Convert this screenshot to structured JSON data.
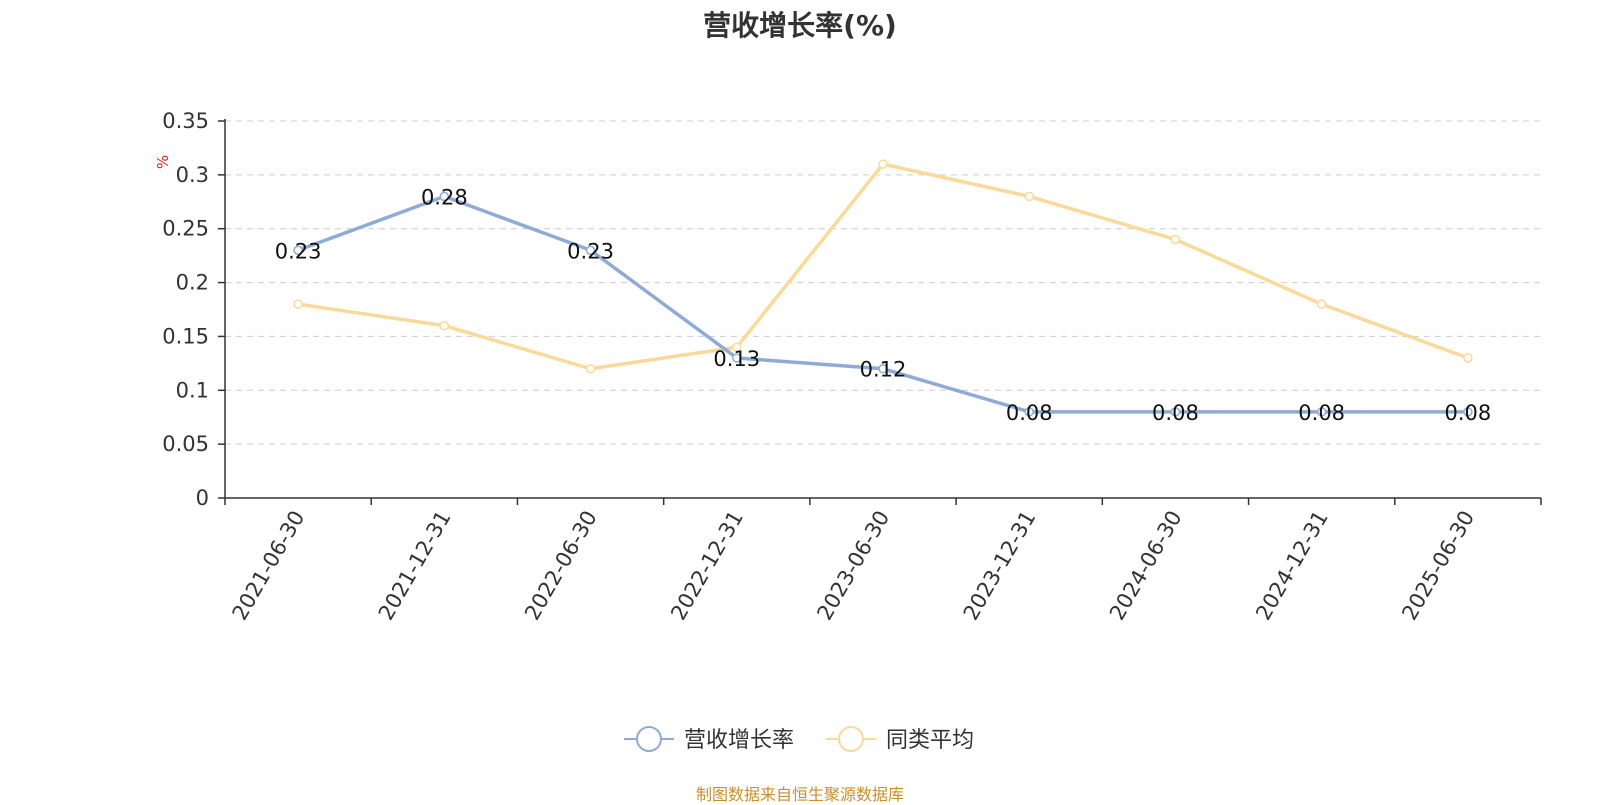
{
  "chart_data": {
    "type": "line",
    "title": "营收增长率(%)",
    "ylabel": "%",
    "ylim": [
      0,
      0.35
    ],
    "yticks": [
      "0",
      "0.05",
      "0.1",
      "0.15",
      "0.2",
      "0.25",
      "0.3",
      "0.35"
    ],
    "categories": [
      "2021-06-30",
      "2021-12-31",
      "2022-06-30",
      "2022-12-31",
      "2023-06-30",
      "2023-12-31",
      "2024-06-30",
      "2024-12-31",
      "2025-06-30"
    ],
    "series": [
      {
        "name": "营收增长率",
        "color": "#8eabd6",
        "values": [
          0.23,
          0.28,
          0.23,
          0.13,
          0.12,
          0.08,
          0.08,
          0.08,
          0.08
        ],
        "labels": [
          "0.23",
          "0.28",
          "0.23",
          "0.13",
          "0.12",
          "0.08",
          "0.08",
          "0.08",
          "0.08"
        ]
      },
      {
        "name": "同类平均",
        "color": "#fad99a",
        "values": [
          0.18,
          0.16,
          0.12,
          0.14,
          0.31,
          0.28,
          0.24,
          0.18,
          0.13
        ]
      }
    ],
    "grid": true,
    "legend": "bottom-center"
  },
  "footer": {
    "source": "制图数据来自恒生聚源数据库"
  }
}
